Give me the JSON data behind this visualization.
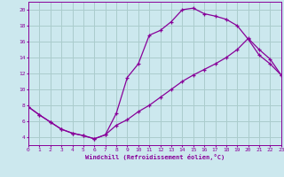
{
  "xlabel": "Windchill (Refroidissement éolien,°C)",
  "xlim": [
    0,
    23
  ],
  "ylim": [
    3,
    21
  ],
  "xticks": [
    0,
    1,
    2,
    3,
    4,
    5,
    6,
    7,
    8,
    9,
    10,
    11,
    12,
    13,
    14,
    15,
    16,
    17,
    18,
    19,
    20,
    21,
    22,
    23
  ],
  "yticks": [
    4,
    6,
    8,
    10,
    12,
    14,
    16,
    18,
    20
  ],
  "bg_color": "#cce8ee",
  "grid_color": "#aacccc",
  "line_color": "#880099",
  "curve1_x": [
    0,
    1,
    2,
    3,
    4,
    5,
    6,
    7,
    8,
    9,
    10,
    11,
    12,
    13,
    14,
    15,
    16,
    17,
    18,
    19,
    20,
    21,
    22,
    23
  ],
  "curve1_y": [
    7.8,
    6.8,
    5.9,
    5.0,
    4.5,
    4.2,
    3.8,
    4.3,
    7.0,
    11.5,
    13.2,
    16.8,
    17.4,
    18.5,
    20.0,
    20.2,
    19.5,
    19.2,
    18.8,
    18.0,
    16.3,
    14.3,
    13.2,
    11.8
  ],
  "curve2_x": [
    0,
    1,
    2,
    3,
    4,
    5,
    6,
    7,
    8,
    9,
    10,
    11,
    12,
    13,
    14,
    15,
    16,
    17,
    18,
    19,
    20,
    21,
    22,
    23
  ],
  "curve2_y": [
    7.8,
    6.8,
    5.9,
    5.0,
    4.5,
    4.2,
    3.8,
    4.3,
    5.5,
    6.2,
    7.2,
    8.0,
    9.0,
    10.0,
    11.0,
    11.8,
    12.5,
    13.2,
    14.0,
    15.0,
    16.4,
    15.0,
    13.8,
    11.8
  ]
}
